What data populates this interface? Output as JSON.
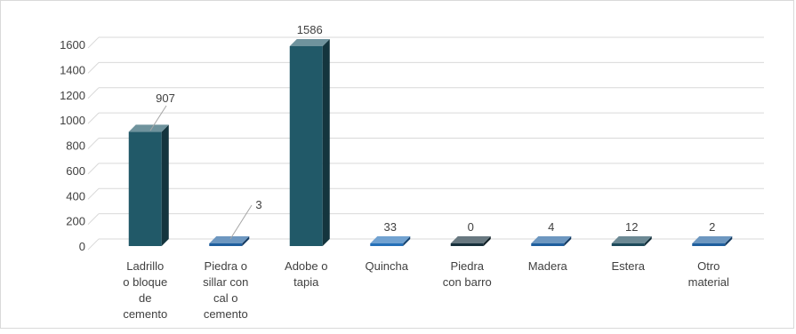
{
  "chart_data": {
    "type": "bar",
    "style": "3d-column",
    "categories": [
      [
        "Ladrillo",
        "o bloque",
        "de",
        "cemento"
      ],
      [
        "Piedra o",
        "sillar con",
        "cal o",
        "cemento"
      ],
      [
        "Adobe o",
        "tapia"
      ],
      [
        "Quincha"
      ],
      [
        "Piedra",
        "con barro"
      ],
      [
        "Madera"
      ],
      [
        "Estera"
      ],
      [
        "Otro",
        "material"
      ]
    ],
    "values": [
      907,
      3,
      1586,
      33,
      0,
      4,
      12,
      2
    ],
    "data_labels": [
      "907",
      "3",
      "1586",
      "33",
      "0",
      "4",
      "12",
      "2"
    ],
    "bar_colors": [
      "#215968",
      "#1f5f9e",
      "#215968",
      "#2570b8",
      "#17303b",
      "#1f5f9e",
      "#1d4a5b",
      "#1f5f9e"
    ],
    "ylim": [
      0,
      1600
    ],
    "yticks": [
      0,
      200,
      400,
      600,
      800,
      1000,
      1200,
      1400,
      1600
    ],
    "ytick_labels": [
      "0",
      "200",
      "400",
      "600",
      "800",
      "1000",
      "1200",
      "1400",
      "1600"
    ],
    "grid": true,
    "legend": "none",
    "title": "",
    "xlabel": "",
    "ylabel": ""
  }
}
